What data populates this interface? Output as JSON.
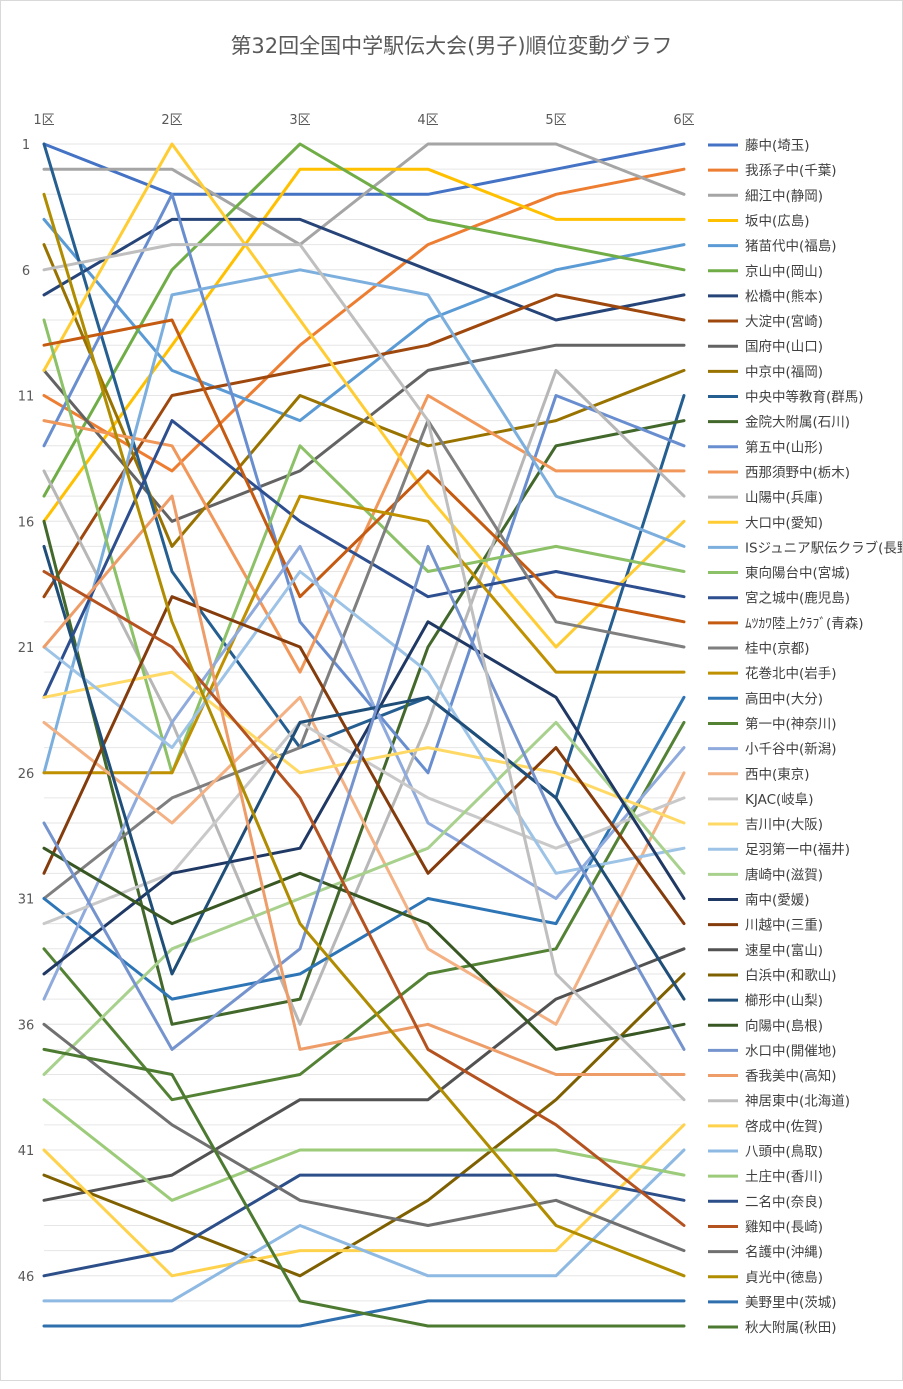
{
  "chart_data": {
    "type": "line",
    "title": "第32回全国中学駅伝大会(男子)順位変動グラフ",
    "x": [
      "1区",
      "2区",
      "3区",
      "4区",
      "5区",
      "6区"
    ],
    "ylim": [
      1,
      48
    ],
    "y_reversed": true,
    "yticks": [
      1,
      6,
      11,
      16,
      21,
      26,
      31,
      36,
      41,
      46
    ],
    "grid": true,
    "legend_position": "right",
    "series": [
      {
        "name": "藤中(埼玉)",
        "color": "#4472C4",
        "values": [
          1,
          3,
          3,
          3,
          2,
          1
        ]
      },
      {
        "name": "我孫子中(千葉)",
        "color": "#ED7D31",
        "values": [
          11,
          14,
          9,
          5,
          3,
          2
        ]
      },
      {
        "name": "細江中(静岡)",
        "color": "#A5A5A5",
        "values": [
          2,
          2,
          5,
          1,
          1,
          3
        ]
      },
      {
        "name": "坂中(広島)",
        "color": "#FFC000",
        "values": [
          16,
          9,
          2,
          2,
          4,
          4
        ]
      },
      {
        "name": "猪苗代中(福島)",
        "color": "#5B9BD5",
        "values": [
          4,
          10,
          12,
          8,
          6,
          5
        ]
      },
      {
        "name": "京山中(岡山)",
        "color": "#70AD47",
        "values": [
          15,
          6,
          1,
          4,
          5,
          6
        ]
      },
      {
        "name": "松橋中(熊本)",
        "color": "#264478",
        "values": [
          7,
          4,
          4,
          6,
          8,
          7
        ]
      },
      {
        "name": "大淀中(宮崎)",
        "color": "#9E480E",
        "values": [
          19,
          11,
          10,
          9,
          7,
          8
        ]
      },
      {
        "name": "国府中(山口)",
        "color": "#636363",
        "values": [
          10,
          16,
          14,
          10,
          9,
          9
        ]
      },
      {
        "name": "中京中(福岡)",
        "color": "#997300",
        "values": [
          5,
          17,
          11,
          13,
          12,
          10
        ]
      },
      {
        "name": "中央中等教育(群馬)",
        "color": "#255E91",
        "values": [
          1,
          18,
          25,
          23,
          27,
          11
        ]
      },
      {
        "name": "金院大附属(石川)",
        "color": "#43682B",
        "values": [
          16,
          36,
          35,
          21,
          13,
          12
        ]
      },
      {
        "name": "第五中(山形)",
        "color": "#698ED0",
        "values": [
          13,
          3,
          20,
          26,
          11,
          13
        ]
      },
      {
        "name": "西那須野中(栃木)",
        "color": "#F1975A",
        "values": [
          12,
          13,
          22,
          11,
          14,
          14
        ]
      },
      {
        "name": "山陽中(兵庫)",
        "color": "#B7B7B7",
        "values": [
          14,
          24,
          36,
          24,
          10,
          15
        ]
      },
      {
        "name": "大口中(愛知)",
        "color": "#FFCD33",
        "values": [
          10,
          1,
          8,
          15,
          21,
          16
        ]
      },
      {
        "name": "ISジュニア駅伝クラブ(長野)",
        "color": "#7CAFDD",
        "values": [
          26,
          7,
          6,
          7,
          15,
          17
        ]
      },
      {
        "name": "東向陽台中(宮城)",
        "color": "#8CC168",
        "values": [
          8,
          26,
          13,
          18,
          17,
          18
        ]
      },
      {
        "name": "宮之城中(鹿児島)",
        "color": "#2E4F8F",
        "values": [
          23,
          12,
          16,
          19,
          18,
          19
        ]
      },
      {
        "name": "ﾑﾂｶﾜ陸上ｸﾗﾌﾞ(青森)",
        "color": "#C55A11",
        "values": [
          9,
          8,
          19,
          14,
          19,
          20
        ]
      },
      {
        "name": "桂中(京都)",
        "color": "#7F7F7F",
        "values": [
          31,
          27,
          25,
          12,
          20,
          21
        ]
      },
      {
        "name": "花巻北中(岩手)",
        "color": "#BF9000",
        "values": [
          26,
          26,
          15,
          16,
          22,
          22
        ]
      },
      {
        "name": "高田中(大分)",
        "color": "#2E75B6",
        "values": [
          31,
          35,
          34,
          31,
          32,
          23
        ]
      },
      {
        "name": "第一中(神奈川)",
        "color": "#548235",
        "values": [
          33,
          39,
          38,
          34,
          33,
          24
        ]
      },
      {
        "name": "小千谷中(新潟)",
        "color": "#8FAADC",
        "values": [
          35,
          24,
          17,
          28,
          31,
          25
        ]
      },
      {
        "name": "西中(東京)",
        "color": "#F4B183",
        "values": [
          24,
          28,
          23,
          33,
          36,
          26
        ]
      },
      {
        "name": "KJAC(岐阜)",
        "color": "#C9C9C9",
        "values": [
          32,
          30,
          24,
          27,
          29,
          27
        ]
      },
      {
        "name": "吉川中(大阪)",
        "color": "#FFD966",
        "values": [
          23,
          22,
          26,
          25,
          26,
          28
        ]
      },
      {
        "name": "足羽第一中(福井)",
        "color": "#9DC3E6",
        "values": [
          21,
          25,
          18,
          22,
          30,
          29
        ]
      },
      {
        "name": "唐崎中(滋賀)",
        "color": "#A9D18E",
        "values": [
          38,
          33,
          31,
          29,
          24,
          30
        ]
      },
      {
        "name": "南中(愛媛)",
        "color": "#1F3864",
        "values": [
          34,
          30,
          29,
          20,
          23,
          31
        ]
      },
      {
        "name": "川越中(三重)",
        "color": "#843C0C",
        "values": [
          30,
          19,
          21,
          30,
          25,
          32
        ]
      },
      {
        "name": "速星中(富山)",
        "color": "#525252",
        "values": [
          43,
          42,
          39,
          39,
          35,
          33
        ]
      },
      {
        "name": "白浜中(和歌山)",
        "color": "#7F6000",
        "values": [
          42,
          44,
          46,
          43,
          39,
          34
        ]
      },
      {
        "name": "櫛形中(山梨)",
        "color": "#1F4E79",
        "values": [
          17,
          34,
          24,
          23,
          27,
          35
        ]
      },
      {
        "name": "向陽中(島根)",
        "color": "#385723",
        "values": [
          29,
          32,
          30,
          32,
          37,
          36
        ]
      },
      {
        "name": "水口中(開催地)",
        "color": "#7594CE",
        "values": [
          28,
          37,
          33,
          17,
          28,
          37
        ]
      },
      {
        "name": "香我美中(高知)",
        "color": "#EE9D68",
        "values": [
          21,
          15,
          37,
          36,
          38,
          38
        ]
      },
      {
        "name": "神居東中(北海道)",
        "color": "#BFBFBF",
        "values": [
          6,
          5,
          5,
          12,
          34,
          39
        ]
      },
      {
        "name": "啓成中(佐賀)",
        "color": "#FFD24D",
        "values": [
          41,
          46,
          45,
          45,
          45,
          40
        ]
      },
      {
        "name": "八頭中(鳥取)",
        "color": "#8EB9E3",
        "values": [
          47,
          47,
          44,
          46,
          46,
          41
        ]
      },
      {
        "name": "土庄中(香川)",
        "color": "#9CCB7A",
        "values": [
          39,
          43,
          41,
          41,
          41,
          42
        ]
      },
      {
        "name": "二名中(奈良)",
        "color": "#2C4E89",
        "values": [
          46,
          45,
          42,
          42,
          42,
          43
        ]
      },
      {
        "name": "雞知中(長崎)",
        "color": "#B45220",
        "values": [
          18,
          21,
          27,
          37,
          40,
          44
        ]
      },
      {
        "name": "名護中(沖縄)",
        "color": "#707070",
        "values": [
          36,
          40,
          43,
          44,
          43,
          45
        ]
      },
      {
        "name": "貞光中(徳島)",
        "color": "#B08C00",
        "values": [
          3,
          20,
          32,
          38,
          44,
          46
        ]
      },
      {
        "name": "美野里中(茨城)",
        "color": "#2F6FAE",
        "values": [
          48,
          48,
          48,
          47,
          47,
          47
        ]
      },
      {
        "name": "秋大附属(秋田)",
        "color": "#4D7A31",
        "values": [
          37,
          38,
          47,
          48,
          48,
          48
        ]
      }
    ]
  }
}
